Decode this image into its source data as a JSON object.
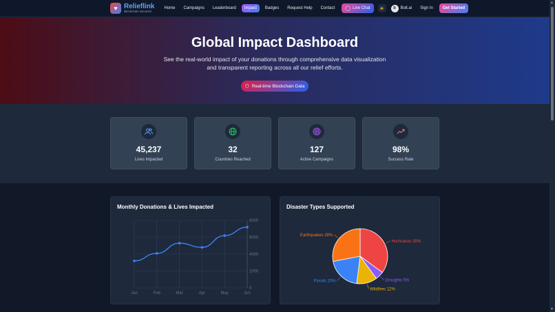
{
  "nav": {
    "brand_name": "Relieflink",
    "brand_sub": "Blockchain Secured",
    "links": [
      "Home",
      "Campaigns",
      "Leaderboard",
      "Impact",
      "Badges",
      "Request Help",
      "Contact"
    ],
    "active_index": 3,
    "live_chat": "Live Chat",
    "bolt": "Bolt.ai",
    "sign_in": "Sign In",
    "get_started": "Get Started"
  },
  "hero": {
    "title": "Global Impact Dashboard",
    "desc_line1": "See the real-world impact of your donations through comprehensive data visualization",
    "desc_line2": "and transparent reporting across all our relief efforts.",
    "badge": "Real-time Blockchain Data"
  },
  "stats": [
    {
      "value": "45,237",
      "label": "Lives Impacted",
      "icon": "users-icon",
      "color": "#60a5fa"
    },
    {
      "value": "32",
      "label": "Countries Reached",
      "icon": "globe-icon",
      "color": "#22c55e"
    },
    {
      "value": "127",
      "label": "Active Campaigns",
      "icon": "target-icon",
      "color": "#a855f7"
    },
    {
      "value": "98%",
      "label": "Success Rate",
      "icon": "trending-up-icon",
      "color": "#f87171"
    }
  ],
  "line_chart_title": "Monthly Donations & Lives Impacted",
  "pie_chart_title": "Disaster Types Supported",
  "chart_data": [
    {
      "type": "line",
      "title": "Monthly Donations & Lives Impacted",
      "categories": [
        "Jan",
        "Feb",
        "Mar",
        "Apr",
        "May",
        "Jun"
      ],
      "series": [
        {
          "values": [
            3200,
            4100,
            5300,
            4800,
            6200,
            7200
          ],
          "color": "#3b82f6"
        }
      ],
      "ylim": [
        0,
        8000
      ],
      "yticks": [
        0,
        2000,
        4000,
        6000,
        8000
      ],
      "grid": true
    },
    {
      "type": "pie",
      "title": "Disaster Types Supported",
      "slices": [
        {
          "label": "Hurricanes 35%",
          "value": 35,
          "color": "#ef4444"
        },
        {
          "label": "Droughts 5%",
          "value": 5,
          "color": "#8b5cf6"
        },
        {
          "label": "Wildfires 12%",
          "value": 12,
          "color": "#eab308"
        },
        {
          "label": "Floods 20%",
          "value": 20,
          "color": "#3b82f6"
        },
        {
          "label": "Earthquakes 28%",
          "value": 28,
          "color": "#f97316"
        }
      ]
    }
  ]
}
